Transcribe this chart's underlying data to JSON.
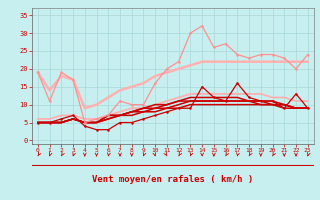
{
  "background_color": "#c8efef",
  "grid_color": "#a8d8d8",
  "xlabel": "Vent moyen/en rafales ( km/h )",
  "xlabel_color": "#cc0000",
  "tick_color": "#cc0000",
  "x_ticks": [
    0,
    1,
    2,
    3,
    4,
    5,
    6,
    7,
    8,
    9,
    10,
    11,
    12,
    13,
    14,
    15,
    16,
    17,
    18,
    19,
    20,
    21,
    22,
    23
  ],
  "ylim": [
    -1,
    37
  ],
  "xlim": [
    -0.5,
    23.5
  ],
  "yticks": [
    0,
    5,
    10,
    15,
    20,
    25,
    30,
    35
  ],
  "series": [
    {
      "y": [
        19,
        11,
        19,
        17,
        5,
        6,
        7,
        11,
        10,
        10,
        16,
        20,
        22,
        30,
        32,
        26,
        27,
        24,
        23,
        24,
        24,
        23,
        20,
        24
      ],
      "color": "#ff9090",
      "lw": 0.9,
      "marker": "o",
      "ms": 1.8,
      "zorder": 3
    },
    {
      "y": [
        19,
        14,
        18,
        17,
        9,
        10,
        12,
        14,
        15,
        16,
        18,
        19,
        20,
        21,
        22,
        22,
        22,
        22,
        22,
        22,
        22,
        22,
        22,
        22
      ],
      "color": "#ffb0b0",
      "lw": 1.8,
      "marker": null,
      "ms": 0,
      "zorder": 2
    },
    {
      "y": [
        6,
        6,
        7,
        7,
        6,
        6,
        7,
        8,
        9,
        9,
        10,
        11,
        12,
        13,
        13,
        13,
        13,
        13,
        13,
        13,
        12,
        12,
        11,
        11
      ],
      "color": "#ffb0b0",
      "lw": 1.3,
      "marker": null,
      "ms": 0,
      "zorder": 2
    },
    {
      "y": [
        5,
        5,
        6,
        7,
        4,
        3,
        3,
        5,
        5,
        6,
        7,
        8,
        9,
        9,
        15,
        12,
        11,
        16,
        12,
        11,
        11,
        9,
        13,
        9
      ],
      "color": "#cc0000",
      "lw": 0.9,
      "marker": "o",
      "ms": 1.8,
      "zorder": 4
    },
    {
      "y": [
        5,
        5,
        5,
        6,
        5,
        5,
        6,
        7,
        7,
        8,
        8,
        9,
        9,
        10,
        10,
        10,
        10,
        10,
        10,
        10,
        10,
        9,
        9,
        9
      ],
      "color": "#cc0000",
      "lw": 1.1,
      "marker": null,
      "ms": 0,
      "zorder": 2
    },
    {
      "y": [
        5,
        5,
        5,
        6,
        5,
        5,
        6,
        7,
        8,
        8,
        9,
        9,
        10,
        11,
        11,
        11,
        11,
        11,
        11,
        11,
        11,
        10,
        9,
        9
      ],
      "color": "#cc0000",
      "lw": 1.1,
      "marker": null,
      "ms": 0,
      "zorder": 2
    },
    {
      "y": [
        5,
        5,
        5,
        6,
        5,
        5,
        7,
        7,
        8,
        9,
        9,
        10,
        11,
        11,
        11,
        11,
        11,
        11,
        11,
        10,
        10,
        10,
        9,
        9
      ],
      "color": "#cc0000",
      "lw": 1.1,
      "marker": null,
      "ms": 0,
      "zorder": 2
    },
    {
      "y": [
        5,
        5,
        5,
        6,
        5,
        5,
        7,
        7,
        8,
        9,
        10,
        10,
        11,
        12,
        12,
        12,
        12,
        12,
        11,
        11,
        10,
        10,
        9,
        9
      ],
      "color": "#cc0000",
      "lw": 1.1,
      "marker": null,
      "ms": 0,
      "zorder": 2
    }
  ],
  "wind_arrows": {
    "angles": [
      225,
      210,
      225,
      210,
      180,
      180,
      200,
      180,
      180,
      210,
      155,
      135,
      225,
      210,
      180,
      180,
      225,
      200,
      225,
      180,
      225,
      180,
      180,
      210
    ],
    "color": "#cc0000"
  }
}
